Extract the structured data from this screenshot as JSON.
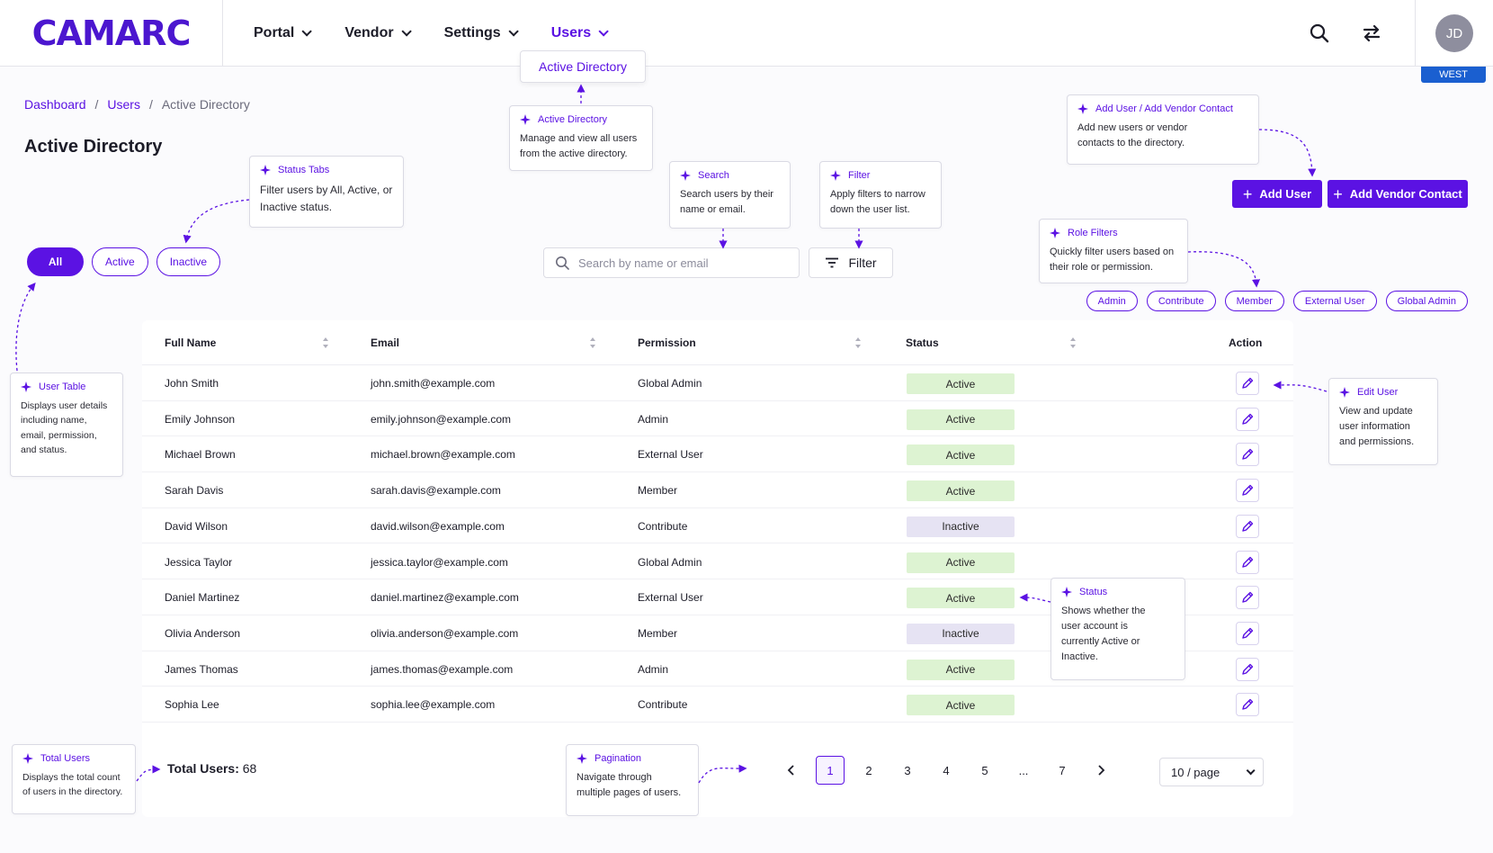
{
  "app": {
    "logo": "CAMARC",
    "user_initials": "JD",
    "region": "WEST"
  },
  "nav": [
    {
      "label": "Portal"
    },
    {
      "label": "Vendor"
    },
    {
      "label": "Settings"
    },
    {
      "label": "Users"
    }
  ],
  "nav_dropdown": {
    "item": "Active Directory"
  },
  "breadcrumb": {
    "home": "Dashboard",
    "section": "Users",
    "current": "Active Directory"
  },
  "page": {
    "title": "Active Directory"
  },
  "tabs": [
    {
      "label": "All"
    },
    {
      "label": "Active"
    },
    {
      "label": "Inactive"
    }
  ],
  "search": {
    "placeholder": "Search by name or email",
    "value": ""
  },
  "filter": {
    "label": "Filter"
  },
  "actions": {
    "add_user": "Add User",
    "add_vendor_contact": "Add Vendor Contact"
  },
  "roles": [
    "Admin",
    "Contribute",
    "Member",
    "External User",
    "Global Admin"
  ],
  "table": {
    "columns": {
      "name": "Full Name",
      "email": "Email",
      "permission": "Permission",
      "status": "Status",
      "action": "Action"
    },
    "rows": [
      {
        "name": "John Smith",
        "email": "john.smith@example.com",
        "permission": "Global Admin",
        "status": "Active"
      },
      {
        "name": "Emily Johnson",
        "email": "emily.johnson@example.com",
        "permission": "Admin",
        "status": "Active"
      },
      {
        "name": "Michael Brown",
        "email": "michael.brown@example.com",
        "permission": "External User",
        "status": "Active"
      },
      {
        "name": "Sarah Davis",
        "email": "sarah.davis@example.com",
        "permission": "Member",
        "status": "Active"
      },
      {
        "name": "David Wilson",
        "email": "david.wilson@example.com",
        "permission": "Contribute",
        "status": "Inactive"
      },
      {
        "name": "Jessica Taylor",
        "email": "jessica.taylor@example.com",
        "permission": "Global Admin",
        "status": "Active"
      },
      {
        "name": "Daniel Martinez",
        "email": "daniel.martinez@example.com",
        "permission": "External User",
        "status": "Active"
      },
      {
        "name": "Olivia Anderson",
        "email": "olivia.anderson@example.com",
        "permission": "Member",
        "status": "Inactive"
      },
      {
        "name": "James Thomas",
        "email": "james.thomas@example.com",
        "permission": "Admin",
        "status": "Active"
      },
      {
        "name": "Sophia Lee",
        "email": "sophia.lee@example.com",
        "permission": "Contribute",
        "status": "Active"
      }
    ]
  },
  "total": {
    "label": "Total Users:",
    "value": "68"
  },
  "pagination": {
    "pages": [
      "1",
      "2",
      "3",
      "4",
      "5",
      "...",
      "7"
    ],
    "current": "1",
    "per_page": "10 / page"
  },
  "annotations": {
    "active_directory": {
      "title": "Active Directory",
      "text": "Manage and view all users from the active directory."
    },
    "status_tabs": {
      "title": "Status Tabs",
      "text": "Filter users by All, Active, or Inactive status."
    },
    "search": {
      "title": "Search",
      "text": "Search users by their name or email."
    },
    "filter": {
      "title": "Filter",
      "text": "Apply filters to narrow down the user list."
    },
    "add_user": {
      "title": "Add User / Add Vendor Contact",
      "text": "Add new users or vendor contacts to the directory."
    },
    "role_filters": {
      "title": "Role Filters",
      "text": "Quickly filter users based on their role or permission."
    },
    "user_table": {
      "title": "User Table",
      "text": "Displays user details including name, email, permission, and status."
    },
    "edit_user": {
      "title": "Edit User",
      "text": "View and update user information and permissions."
    },
    "status": {
      "title": "Status",
      "text": "Shows whether the user account is currently Active or Inactive."
    },
    "total_users": {
      "title": "Total Users",
      "text": "Displays the total count of users in the directory."
    },
    "pagination": {
      "title": "Pagination",
      "text": "Navigate through multiple pages of users."
    }
  },
  "colors": {
    "accent": "#5b12e3",
    "active_bg": "#ddf3d2",
    "inactive_bg": "#e6e3f3",
    "region_bg": "#1a5fd0"
  }
}
